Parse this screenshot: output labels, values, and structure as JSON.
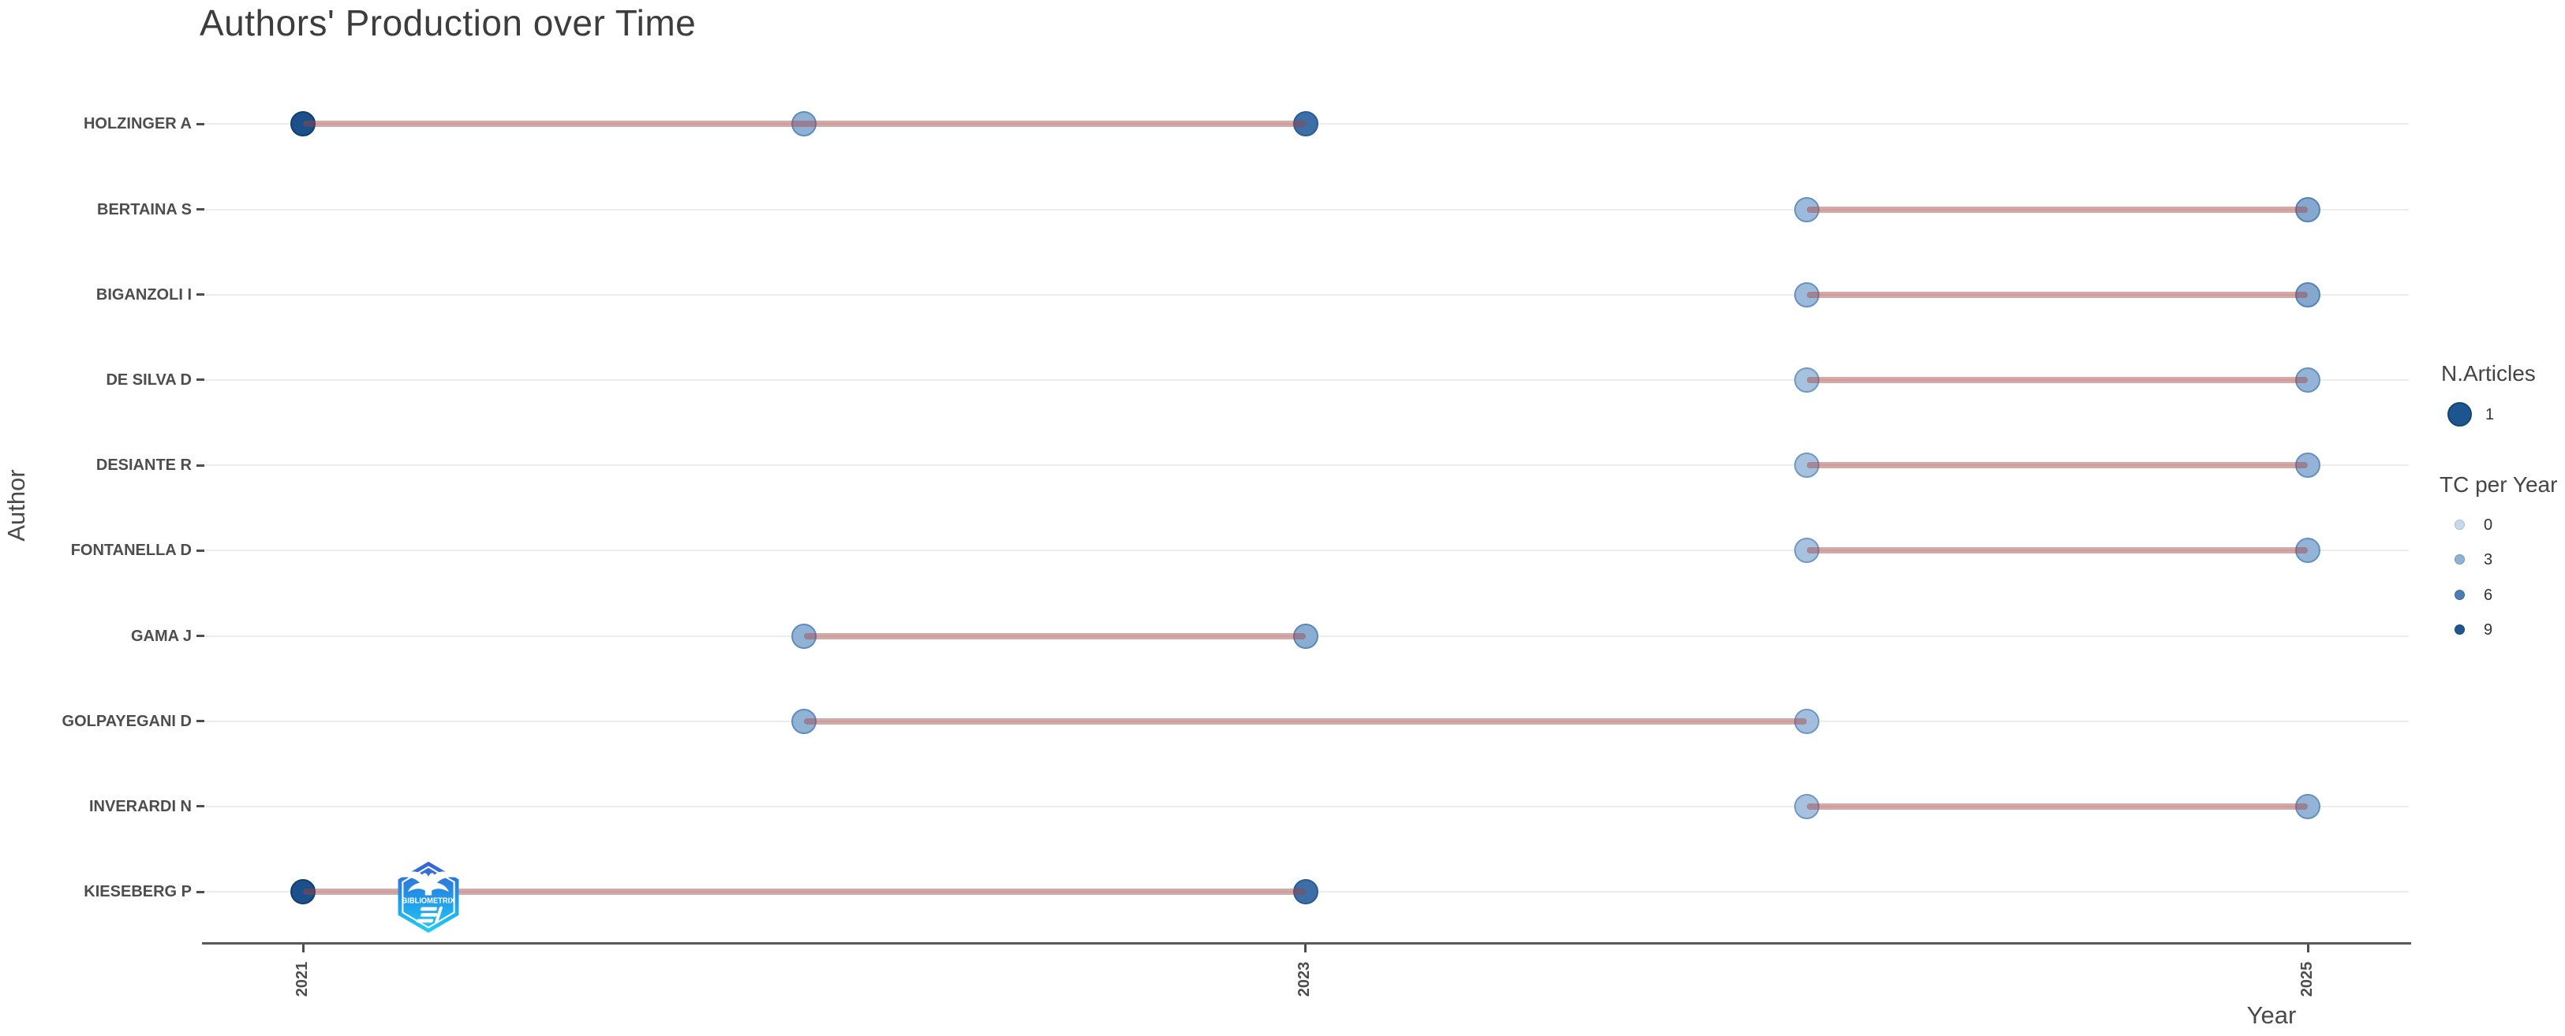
{
  "title": "Authors' Production over Time",
  "axes": {
    "x_title": "Year",
    "y_title": "Author",
    "x_ticks": [
      "2021",
      "2023",
      "2025"
    ]
  },
  "legend": {
    "size": {
      "title": "N.Articles",
      "items": [
        {
          "label": "1",
          "fill": "#1d5590",
          "stroke": "#164672"
        }
      ]
    },
    "color": {
      "title": "TC per Year",
      "items": [
        {
          "label": "0",
          "fill": "#c9d9ea",
          "stroke": "#a3bfd9"
        },
        {
          "label": "3",
          "fill": "#8fb1d4",
          "stroke": "#6e97c0"
        },
        {
          "label": "6",
          "fill": "#4c7cb0",
          "stroke": "#3a699e"
        },
        {
          "label": "9",
          "fill": "#1e5791",
          "stroke": "#164672"
        }
      ]
    }
  },
  "watermark": {
    "text": "BIBLIOMETRIX",
    "gradient_top": "#3a5fd4",
    "gradient_mid": "#2196e8",
    "gradient_bottom": "#22cdf6"
  },
  "chart_data": {
    "type": "scatter",
    "title": "Authors' Production over Time",
    "xlabel": "Year",
    "ylabel": "Author",
    "x_range": [
      2021,
      2025
    ],
    "x_tick_labels": [
      2021,
      2023,
      2025
    ],
    "grid": "horizontal-only",
    "line_color": "#a44040",
    "line_opacity": 0.45,
    "size_legend_values": [
      1
    ],
    "tc_legend_values": [
      0,
      3,
      6,
      9
    ],
    "authors": [
      {
        "name": "HOLZINGER A",
        "points": [
          {
            "year": 2021,
            "n_articles": 1,
            "tc_per_year": 9,
            "fill": "#1b508a",
            "stroke": "#123e6e"
          },
          {
            "year": 2022,
            "n_articles": 1,
            "tc_per_year": 3,
            "fill": "#8fb2d4",
            "stroke": "#5d8dbf"
          },
          {
            "year": 2023,
            "n_articles": 1,
            "tc_per_year": 6,
            "fill": "#3d6ea5",
            "stroke": "#2a5c96"
          }
        ]
      },
      {
        "name": "BERTAINA S",
        "points": [
          {
            "year": 2024,
            "n_articles": 1,
            "tc_per_year": 1,
            "fill": "#9cbada",
            "stroke": "#6792bf"
          },
          {
            "year": 2025,
            "n_articles": 1,
            "tc_per_year": 2,
            "fill": "#84a8ce",
            "stroke": "#5584b8"
          }
        ]
      },
      {
        "name": "BIGANZOLI I",
        "points": [
          {
            "year": 2024,
            "n_articles": 1,
            "tc_per_year": 1,
            "fill": "#9cbada",
            "stroke": "#6792bf"
          },
          {
            "year": 2025,
            "n_articles": 1,
            "tc_per_year": 2,
            "fill": "#84a8ce",
            "stroke": "#5584b8"
          }
        ]
      },
      {
        "name": "DE SILVA D",
        "points": [
          {
            "year": 2024,
            "n_articles": 1,
            "tc_per_year": 0,
            "fill": "#a7c2df",
            "stroke": "#7099c4"
          },
          {
            "year": 2025,
            "n_articles": 1,
            "tc_per_year": 1,
            "fill": "#93b4d6",
            "stroke": "#6590bf"
          }
        ]
      },
      {
        "name": "DESIANTE R",
        "points": [
          {
            "year": 2024,
            "n_articles": 1,
            "tc_per_year": 0,
            "fill": "#a7c2df",
            "stroke": "#7099c4"
          },
          {
            "year": 2025,
            "n_articles": 1,
            "tc_per_year": 1,
            "fill": "#93b4d6",
            "stroke": "#6590bf"
          }
        ]
      },
      {
        "name": "FONTANELLA D",
        "points": [
          {
            "year": 2024,
            "n_articles": 1,
            "tc_per_year": 0,
            "fill": "#a7c2df",
            "stroke": "#7099c4"
          },
          {
            "year": 2025,
            "n_articles": 1,
            "tc_per_year": 1,
            "fill": "#93b4d6",
            "stroke": "#6590bf"
          }
        ]
      },
      {
        "name": "GAMA J",
        "points": [
          {
            "year": 2022,
            "n_articles": 1,
            "tc_per_year": 2,
            "fill": "#90b2d4",
            "stroke": "#5f8cbe"
          },
          {
            "year": 2023,
            "n_articles": 1,
            "tc_per_year": 2,
            "fill": "#8aaed2",
            "stroke": "#5a88bb"
          }
        ]
      },
      {
        "name": "GOLPAYEGANI D",
        "points": [
          {
            "year": 2022,
            "n_articles": 1,
            "tc_per_year": 2,
            "fill": "#90b2d4",
            "stroke": "#5f8cbe"
          },
          {
            "year": 2024,
            "n_articles": 1,
            "tc_per_year": 1,
            "fill": "#a2bedd",
            "stroke": "#6f98c3"
          }
        ]
      },
      {
        "name": "INVERARDI N",
        "points": [
          {
            "year": 2024,
            "n_articles": 1,
            "tc_per_year": 0,
            "fill": "#a7c2df",
            "stroke": "#7099c4"
          },
          {
            "year": 2025,
            "n_articles": 1,
            "tc_per_year": 1,
            "fill": "#93b4d6",
            "stroke": "#6590bf"
          }
        ]
      },
      {
        "name": "KIESEBERG P",
        "points": [
          {
            "year": 2021,
            "n_articles": 1,
            "tc_per_year": 9,
            "fill": "#1b508a",
            "stroke": "#123e6e"
          },
          {
            "year": 2023,
            "n_articles": 1,
            "tc_per_year": 6,
            "fill": "#3d6ea5",
            "stroke": "#2a5c96"
          }
        ]
      }
    ]
  }
}
